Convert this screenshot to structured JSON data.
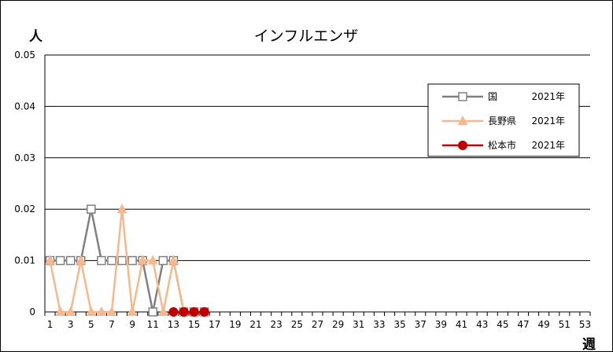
{
  "chart_data": {
    "type": "line",
    "title": "インフルエンザ",
    "ylabel": "人",
    "xlabel": "週",
    "ylim": [
      0,
      0.05
    ],
    "yticks": [
      "0",
      "0.01",
      "0.02",
      "0.03",
      "0.04",
      "0.05"
    ],
    "xlim": [
      1,
      53
    ],
    "xticks": [
      1,
      3,
      5,
      7,
      9,
      11,
      13,
      15,
      17,
      19,
      21,
      23,
      25,
      27,
      29,
      31,
      33,
      35,
      37,
      39,
      41,
      43,
      45,
      47,
      49,
      51,
      53
    ],
    "grid": true,
    "legend_position": "top-right",
    "series": [
      {
        "name": "国",
        "year": "2021年",
        "color": "#808080",
        "marker": "square",
        "x": [
          1,
          2,
          3,
          4,
          5,
          6,
          7,
          8,
          9,
          10,
          11,
          12,
          13,
          14,
          15,
          16
        ],
        "values": [
          0.01,
          0.01,
          0.01,
          0.01,
          0.02,
          0.01,
          0.01,
          0.01,
          0.01,
          0.01,
          0,
          0.01,
          0.01,
          0,
          0,
          0
        ]
      },
      {
        "name": "長野県",
        "year": "2021年",
        "color": "#f6b88c",
        "marker": "triangle",
        "x": [
          1,
          2,
          3,
          4,
          5,
          6,
          7,
          8,
          9,
          10,
          11,
          12,
          13,
          14,
          15,
          16
        ],
        "values": [
          0.01,
          0,
          0,
          0.01,
          0,
          0,
          0,
          0.02,
          0,
          0.01,
          0.01,
          0,
          0.01,
          0,
          0,
          0
        ]
      },
      {
        "name": "松本市",
        "year": "2021年",
        "color": "#c00000",
        "marker": "circle",
        "x": [
          13,
          14,
          15,
          16
        ],
        "values": [
          0,
          0,
          0,
          0
        ]
      }
    ]
  }
}
